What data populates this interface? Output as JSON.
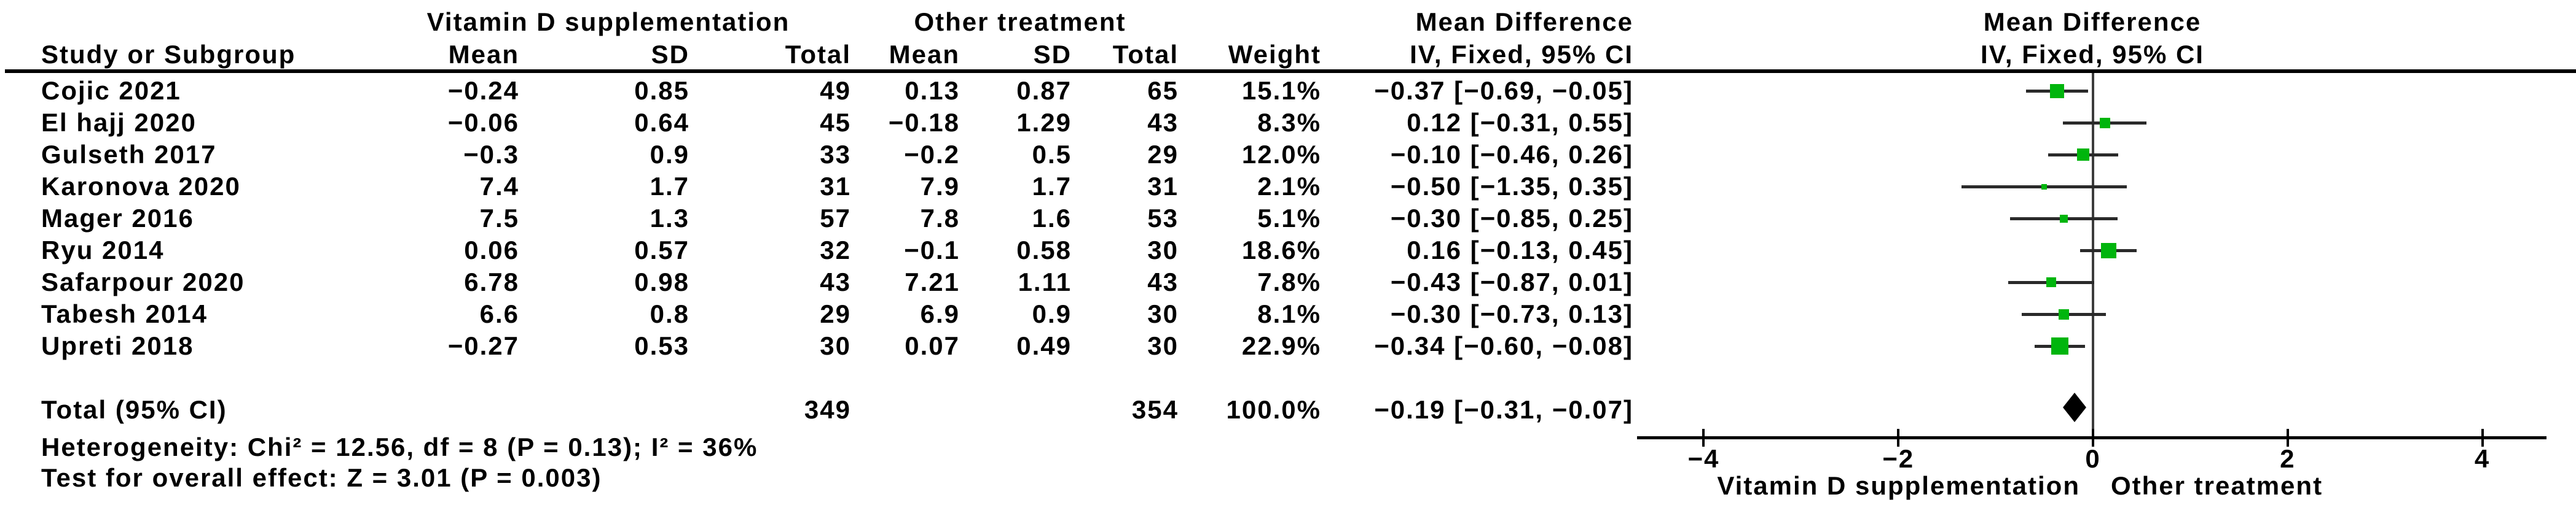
{
  "header": {
    "study_col": "Study or Subgroup",
    "group_vd": "Vitamin D supplementation",
    "group_other": "Other treatment",
    "mean": "Mean",
    "sd": "SD",
    "total": "Total",
    "weight": "Weight",
    "md": "Mean Difference",
    "iv": "IV, Fixed, 95% CI"
  },
  "colors": {
    "square_green": "#00b50d",
    "diamond_black": "#000000",
    "ci_line": "#2a2a2a",
    "zero_line": "#3c3c3c",
    "axis": "#000000"
  },
  "chart_data": {
    "type": "forest",
    "effect_label": "Mean Difference",
    "method_label": "IV, Fixed, 95% CI",
    "x_axis": {
      "ticks": [
        -4,
        -2,
        0,
        2,
        4
      ],
      "tick_labels": [
        "−4",
        "−2",
        "0",
        "2",
        "4"
      ],
      "range": [
        -4.7,
        4.9
      ],
      "label_left": "Vitamin D supplementation",
      "label_right": "Other treatment"
    },
    "studies": [
      {
        "name": "Cojic 2021",
        "vd": {
          "mean": "−0.24",
          "sd": "0.85",
          "total": "49"
        },
        "other": {
          "mean": "0.13",
          "sd": "0.87",
          "total": "65"
        },
        "weight": "15.1%",
        "weight_pct": 15.1,
        "md_text": "−0.37 [−0.69, −0.05]",
        "estimate": -0.37,
        "ci_low": -0.69,
        "ci_high": -0.05
      },
      {
        "name": "El hajj 2020",
        "vd": {
          "mean": "−0.06",
          "sd": "0.64",
          "total": "45"
        },
        "other": {
          "mean": "−0.18",
          "sd": "1.29",
          "total": "43"
        },
        "weight": "8.3%",
        "weight_pct": 8.3,
        "md_text": "0.12 [−0.31, 0.55]",
        "estimate": 0.12,
        "ci_low": -0.31,
        "ci_high": 0.55
      },
      {
        "name": "Gulseth 2017",
        "vd": {
          "mean": "−0.3",
          "sd": "0.9",
          "total": "33"
        },
        "other": {
          "mean": "−0.2",
          "sd": "0.5",
          "total": "29"
        },
        "weight": "12.0%",
        "weight_pct": 12.0,
        "md_text": "−0.10 [−0.46, 0.26]",
        "estimate": -0.1,
        "ci_low": -0.46,
        "ci_high": 0.26
      },
      {
        "name": "Karonova 2020",
        "vd": {
          "mean": "7.4",
          "sd": "1.7",
          "total": "31"
        },
        "other": {
          "mean": "7.9",
          "sd": "1.7",
          "total": "31"
        },
        "weight": "2.1%",
        "weight_pct": 2.1,
        "md_text": "−0.50 [−1.35, 0.35]",
        "estimate": -0.5,
        "ci_low": -1.35,
        "ci_high": 0.35
      },
      {
        "name": "Mager 2016",
        "vd": {
          "mean": "7.5",
          "sd": "1.3",
          "total": "57"
        },
        "other": {
          "mean": "7.8",
          "sd": "1.6",
          "total": "53"
        },
        "weight": "5.1%",
        "weight_pct": 5.1,
        "md_text": "−0.30 [−0.85, 0.25]",
        "estimate": -0.3,
        "ci_low": -0.85,
        "ci_high": 0.25
      },
      {
        "name": "Ryu 2014",
        "vd": {
          "mean": "0.06",
          "sd": "0.57",
          "total": "32"
        },
        "other": {
          "mean": "−0.1",
          "sd": "0.58",
          "total": "30"
        },
        "weight": "18.6%",
        "weight_pct": 18.6,
        "md_text": "0.16 [−0.13, 0.45]",
        "estimate": 0.16,
        "ci_low": -0.13,
        "ci_high": 0.45
      },
      {
        "name": "Safarpour 2020",
        "vd": {
          "mean": "6.78",
          "sd": "0.98",
          "total": "43"
        },
        "other": {
          "mean": "7.21",
          "sd": "1.11",
          "total": "43"
        },
        "weight": "7.8%",
        "weight_pct": 7.8,
        "md_text": "−0.43 [−0.87, 0.01]",
        "estimate": -0.43,
        "ci_low": -0.87,
        "ci_high": 0.01
      },
      {
        "name": "Tabesh 2014",
        "vd": {
          "mean": "6.6",
          "sd": "0.8",
          "total": "29"
        },
        "other": {
          "mean": "6.9",
          "sd": "0.9",
          "total": "30"
        },
        "weight": "8.1%",
        "weight_pct": 8.1,
        "md_text": "−0.30 [−0.73, 0.13]",
        "estimate": -0.3,
        "ci_low": -0.73,
        "ci_high": 0.13
      },
      {
        "name": "Upreti 2018",
        "vd": {
          "mean": "−0.27",
          "sd": "0.53",
          "total": "30"
        },
        "other": {
          "mean": "0.07",
          "sd": "0.49",
          "total": "30"
        },
        "weight": "22.9%",
        "weight_pct": 22.9,
        "md_text": "−0.34 [−0.60, −0.08]",
        "estimate": -0.34,
        "ci_low": -0.6,
        "ci_high": -0.08
      }
    ],
    "total": {
      "label": "Total (95% CI)",
      "vd_total": "349",
      "ot_total": "354",
      "weight": "100.0%",
      "md_text": "−0.19 [−0.31, −0.07]",
      "estimate": -0.19,
      "ci_low": -0.31,
      "ci_high": -0.07
    },
    "heterogeneity": "Heterogeneity: Chi² = 12.56, df = 8 (P = 0.13); I² = 36%",
    "overall_effect": "Test for overall effect: Z = 3.01 (P = 0.003)"
  }
}
